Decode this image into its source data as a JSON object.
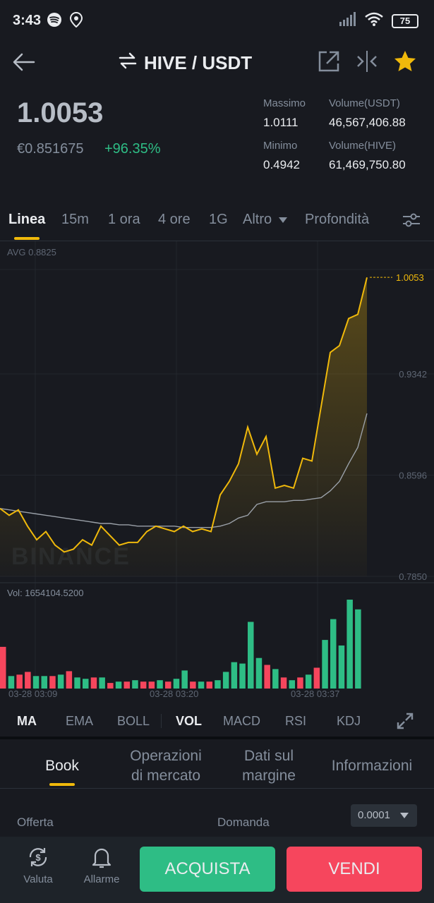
{
  "status": {
    "time": "3:43",
    "battery": "75",
    "icons_left": [
      "spotify-icon",
      "location-icon"
    ],
    "icons_right": [
      "signal-icon",
      "wifi-icon",
      "battery-icon"
    ]
  },
  "nav": {
    "pair": "HIVE / USDT",
    "icons": [
      "back-arrow-icon",
      "swap-icon",
      "external-link-icon",
      "compare-icon",
      "star-icon"
    ]
  },
  "ticker": {
    "last_price": "1.0053",
    "fiat_price": "€0.851675",
    "change": "+96.35%",
    "high_label": "Massimo",
    "high": "1.0111",
    "low_label": "Minimo",
    "low": "0.4942",
    "vol_quote_label": "Volume(USDT)",
    "vol_quote": "46,567,406.88",
    "vol_base_label": "Volume(HIVE)",
    "vol_base": "61,469,750.80"
  },
  "tabs": [
    "Linea",
    "15m",
    "1 ora",
    "4 ore",
    "1G",
    "Altro",
    "Profondità"
  ],
  "chart": {
    "avg_label": "AVG 0.8825",
    "price_tag": "1.0053",
    "y_labels": [
      "0.9342",
      "0.8596",
      "0.7850"
    ],
    "vol_label": "Vol: 1654104.5200",
    "watermark": "BINANCE",
    "x_labels": [
      "03-28 03:09",
      "03-28 03:20",
      "03-28 03:37"
    ]
  },
  "chart_data": {
    "type": "line",
    "ylim": [
      0.785,
      1.0111
    ],
    "price": [
      0.835,
      0.83,
      0.834,
      0.822,
      0.812,
      0.818,
      0.808,
      0.803,
      0.805,
      0.812,
      0.808,
      0.822,
      0.815,
      0.808,
      0.81,
      0.81,
      0.818,
      0.822,
      0.82,
      0.818,
      0.822,
      0.818,
      0.82,
      0.818,
      0.845,
      0.855,
      0.868,
      0.895,
      0.875,
      0.888,
      0.85,
      0.852,
      0.85,
      0.872,
      0.87,
      0.91,
      0.95,
      0.955,
      0.975,
      0.978,
      1.0053
    ],
    "avg": [
      0.835,
      0.834,
      0.833,
      0.832,
      0.831,
      0.83,
      0.829,
      0.828,
      0.827,
      0.826,
      0.825,
      0.824,
      0.824,
      0.823,
      0.823,
      0.822,
      0.822,
      0.822,
      0.822,
      0.822,
      0.821,
      0.821,
      0.821,
      0.821,
      0.822,
      0.824,
      0.828,
      0.83,
      0.838,
      0.84,
      0.84,
      0.84,
      0.841,
      0.841,
      0.842,
      0.843,
      0.848,
      0.855,
      0.868,
      0.88,
      0.905
    ],
    "volumes": [
      60,
      18,
      20,
      24,
      18,
      18,
      18,
      20,
      25,
      16,
      14,
      16,
      16,
      8,
      10,
      10,
      12,
      10,
      10,
      12,
      10,
      14,
      26,
      10,
      10,
      10,
      12,
      24,
      38,
      36,
      96,
      44,
      34,
      28,
      16,
      12,
      16,
      20,
      30,
      70,
      100,
      62,
      128,
      114
    ],
    "vol_colors": [
      "r",
      "g",
      "r",
      "r",
      "g",
      "g",
      "r",
      "g",
      "r",
      "g",
      "g",
      "r",
      "g",
      "r",
      "g",
      "r",
      "g",
      "r",
      "r",
      "g",
      "r",
      "g",
      "g",
      "r",
      "g",
      "r",
      "g",
      "g",
      "g",
      "g",
      "g",
      "g",
      "r",
      "g",
      "r",
      "g",
      "r",
      "g",
      "r",
      "g",
      "g",
      "g",
      "g",
      "g"
    ]
  },
  "indicators": [
    "MA",
    "EMA",
    "BOLL",
    "VOL",
    "MACD",
    "RSI",
    "KDJ"
  ],
  "sub_tabs": {
    "book": "Book",
    "trades_1": "Operazioni",
    "trades_2": "di mercato",
    "margin_1": "Dati sul",
    "margin_2": "margine",
    "info": "Informazioni"
  },
  "book": {
    "bid_label": "Offerta",
    "ask_label": "Domanda",
    "precision": "0.0001"
  },
  "bottom": {
    "currency": "Valuta",
    "alarms": "Allarme",
    "buy": "ACQUISTA",
    "sell": "VENDI"
  },
  "colors": {
    "accent": "#f0b90b",
    "up": "#2ebd85",
    "down": "#f6465d",
    "buy_button": "#2ebd85",
    "sell_button": "#f6465d"
  }
}
